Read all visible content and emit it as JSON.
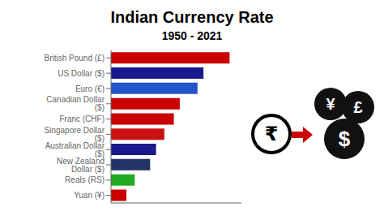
{
  "chart_data": {
    "type": "bar",
    "title": "Indian Currency Rate",
    "subtitle": "1950 - 2021",
    "orientation": "horizontal",
    "categories": [
      "British Pound (£)",
      "US Dollar ($)",
      "Euro (€)",
      "Canadian Dollar ($)",
      "Franc (CHF)",
      "Singapore Dollar ($)",
      "Australian Dollar ($)",
      "New Zealand Dollar ($)",
      "Reals (RS)",
      "Yuan (¥)"
    ],
    "values": [
      10.0,
      7.8,
      7.3,
      5.8,
      5.3,
      4.5,
      3.8,
      3.3,
      2.0,
      1.3
    ],
    "colors": [
      "#cc0000",
      "#1a1a8c",
      "#2255cc",
      "#cc0000",
      "#cc0000",
      "#cc1111",
      "#1a1a8c",
      "#223366",
      "#22aa22",
      "#cc0000"
    ],
    "xlim": [
      0,
      11
    ],
    "tick_labels": "y",
    "annotations": [
      "₹",
      "¥",
      "£",
      "$"
    ]
  }
}
